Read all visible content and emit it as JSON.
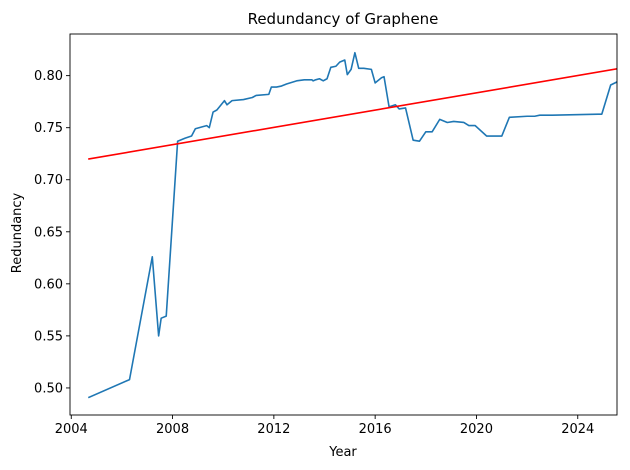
{
  "chart_data": {
    "type": "line",
    "title": "Redundancy of Graphene",
    "xlabel": "Year",
    "ylabel": "Redundancy",
    "xlim": [
      2003.95,
      2025.55
    ],
    "ylim": [
      0.474,
      0.84
    ],
    "x_ticks": [
      2004,
      2008,
      2012,
      2016,
      2020,
      2024
    ],
    "y_ticks": [
      0.5,
      0.55,
      0.6,
      0.65,
      0.7,
      0.75,
      0.8
    ],
    "x_tick_labels": [
      "2004",
      "2008",
      "2012",
      "2016",
      "2020",
      "2024"
    ],
    "y_tick_labels": [
      "0.50",
      "0.55",
      "0.60",
      "0.65",
      "0.70",
      "0.75",
      "0.80"
    ],
    "grid": false,
    "legend": "none",
    "series": [
      {
        "color": "#1f77b4",
        "points": [
          [
            2004.7,
            0.491
          ],
          [
            2006.3,
            0.508
          ],
          [
            2007.2,
            0.626
          ],
          [
            2007.45,
            0.55
          ],
          [
            2007.55,
            0.567
          ],
          [
            2007.75,
            0.569
          ],
          [
            2008.2,
            0.737
          ],
          [
            2008.5,
            0.74
          ],
          [
            2008.75,
            0.742
          ],
          [
            2008.9,
            0.749
          ],
          [
            2009.2,
            0.751
          ],
          [
            2009.35,
            0.752
          ],
          [
            2009.45,
            0.75
          ],
          [
            2009.6,
            0.765
          ],
          [
            2009.75,
            0.767
          ],
          [
            2010.05,
            0.776
          ],
          [
            2010.15,
            0.772
          ],
          [
            2010.35,
            0.776
          ],
          [
            2010.8,
            0.777
          ],
          [
            2011.15,
            0.779
          ],
          [
            2011.3,
            0.781
          ],
          [
            2011.8,
            0.782
          ],
          [
            2011.9,
            0.789
          ],
          [
            2012.1,
            0.789
          ],
          [
            2012.3,
            0.79
          ],
          [
            2012.5,
            0.792
          ],
          [
            2012.9,
            0.795
          ],
          [
            2013.2,
            0.796
          ],
          [
            2013.5,
            0.796
          ],
          [
            2013.55,
            0.795
          ],
          [
            2013.65,
            0.796
          ],
          [
            2013.8,
            0.797
          ],
          [
            2013.95,
            0.795
          ],
          [
            2014.1,
            0.797
          ],
          [
            2014.25,
            0.808
          ],
          [
            2014.45,
            0.809
          ],
          [
            2014.6,
            0.813
          ],
          [
            2014.8,
            0.815
          ],
          [
            2014.9,
            0.801
          ],
          [
            2015.05,
            0.806
          ],
          [
            2015.2,
            0.822
          ],
          [
            2015.35,
            0.807
          ],
          [
            2015.55,
            0.807
          ],
          [
            2015.85,
            0.806
          ],
          [
            2016.0,
            0.793
          ],
          [
            2016.25,
            0.798
          ],
          [
            2016.35,
            0.799
          ],
          [
            2016.55,
            0.77
          ],
          [
            2016.8,
            0.772
          ],
          [
            2016.95,
            0.768
          ],
          [
            2017.2,
            0.769
          ],
          [
            2017.5,
            0.738
          ],
          [
            2017.75,
            0.737
          ],
          [
            2018.0,
            0.746
          ],
          [
            2018.25,
            0.746
          ],
          [
            2018.55,
            0.758
          ],
          [
            2018.85,
            0.755
          ],
          [
            2019.1,
            0.756
          ],
          [
            2019.5,
            0.755
          ],
          [
            2019.7,
            0.752
          ],
          [
            2019.95,
            0.752
          ],
          [
            2020.4,
            0.742
          ],
          [
            2020.75,
            0.742
          ],
          [
            2021.0,
            0.742
          ],
          [
            2021.3,
            0.76
          ],
          [
            2022.0,
            0.761
          ],
          [
            2022.3,
            0.761
          ],
          [
            2022.5,
            0.762
          ],
          [
            2023.0,
            0.762
          ],
          [
            2024.8,
            0.763
          ],
          [
            2024.95,
            0.763
          ],
          [
            2025.3,
            0.791
          ],
          [
            2026.15,
            0.801
          ]
        ]
      },
      {
        "color": "#ff0000",
        "points": [
          [
            2004.7,
            0.72
          ],
          [
            2026.15,
            0.809
          ]
        ]
      }
    ]
  }
}
